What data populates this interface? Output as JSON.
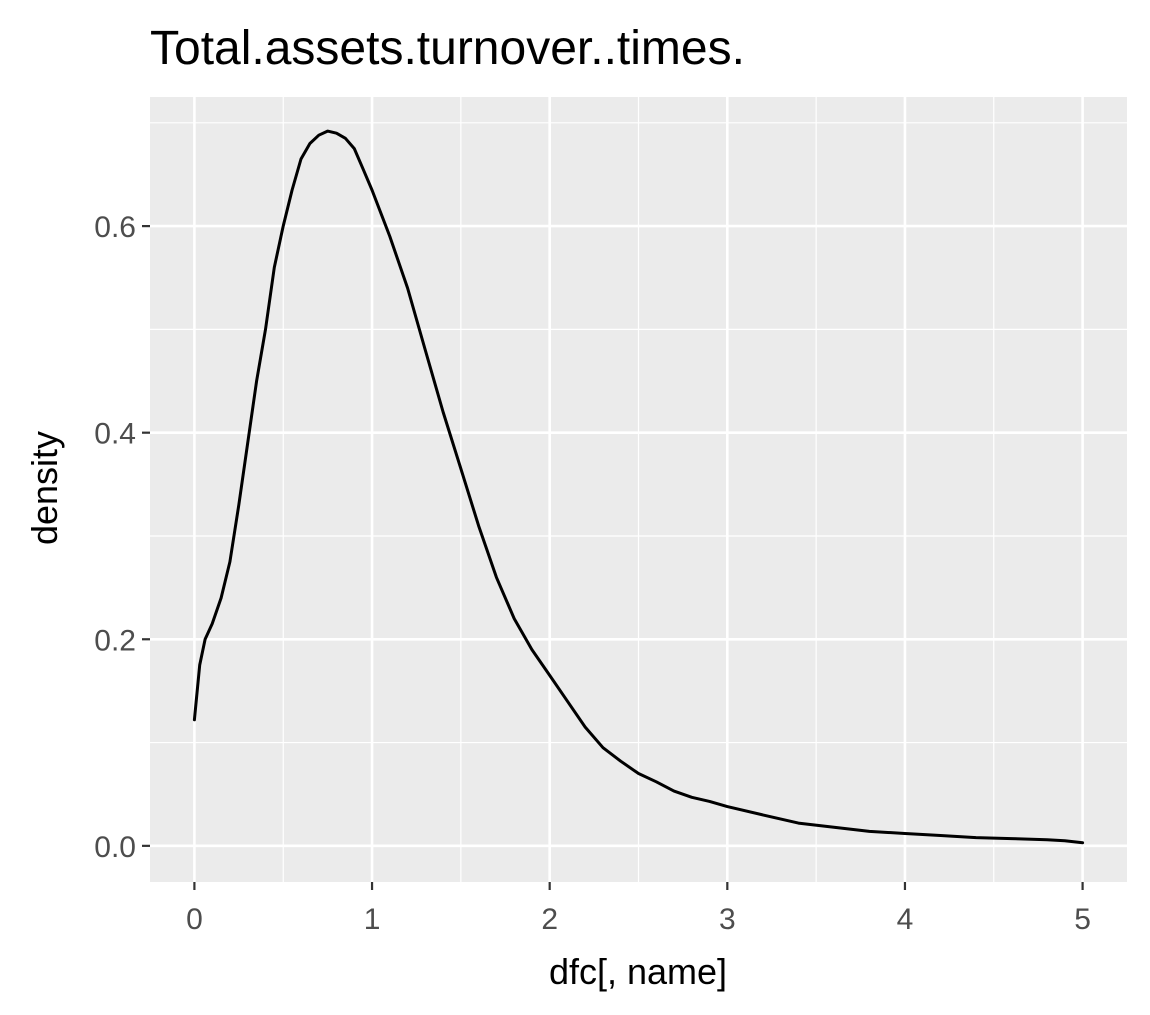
{
  "chart_data": {
    "type": "line",
    "title": "Total.assets.turnover..times.",
    "xlabel": "dfc[, name]",
    "ylabel": "density",
    "xlim": [
      -0.25,
      5.25
    ],
    "ylim": [
      -0.035,
      0.725
    ],
    "x_ticks": [
      0,
      1,
      2,
      3,
      4,
      5
    ],
    "y_ticks": [
      0.0,
      0.2,
      0.4,
      0.6
    ],
    "x_tick_labels": [
      "0",
      "1",
      "2",
      "3",
      "4",
      "5"
    ],
    "y_tick_labels": [
      "0.0",
      "0.2",
      "0.4",
      "0.6"
    ],
    "grid": true,
    "legend": "none",
    "colors": {
      "panel": "#ebebeb",
      "grid": "#ffffff",
      "line": "#000000",
      "tick_text": "#4d4d4d",
      "tick_mark": "#333333"
    },
    "series": [
      {
        "x": [
          0.0,
          0.03,
          0.06,
          0.1,
          0.15,
          0.2,
          0.25,
          0.3,
          0.35,
          0.4,
          0.45,
          0.5,
          0.55,
          0.6,
          0.65,
          0.7,
          0.75,
          0.8,
          0.85,
          0.9,
          0.95,
          1.0,
          1.1,
          1.2,
          1.3,
          1.4,
          1.5,
          1.6,
          1.7,
          1.8,
          1.9,
          2.0,
          2.1,
          2.2,
          2.3,
          2.4,
          2.5,
          2.6,
          2.7,
          2.8,
          2.9,
          3.0,
          3.2,
          3.4,
          3.6,
          3.8,
          4.0,
          4.2,
          4.4,
          4.6,
          4.8,
          4.9,
          5.0
        ],
        "y": [
          0.122,
          0.175,
          0.2,
          0.215,
          0.24,
          0.275,
          0.33,
          0.39,
          0.45,
          0.5,
          0.56,
          0.6,
          0.635,
          0.665,
          0.68,
          0.688,
          0.692,
          0.69,
          0.685,
          0.675,
          0.655,
          0.635,
          0.59,
          0.54,
          0.48,
          0.42,
          0.365,
          0.31,
          0.26,
          0.22,
          0.19,
          0.165,
          0.14,
          0.115,
          0.095,
          0.082,
          0.07,
          0.062,
          0.053,
          0.047,
          0.043,
          0.038,
          0.03,
          0.022,
          0.018,
          0.014,
          0.012,
          0.01,
          0.008,
          0.007,
          0.006,
          0.005,
          0.003
        ]
      }
    ]
  }
}
